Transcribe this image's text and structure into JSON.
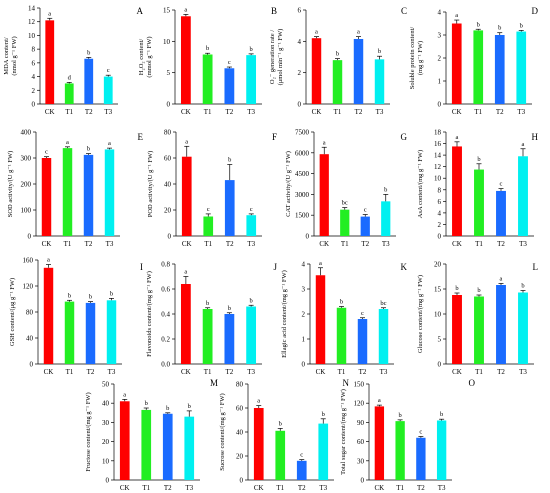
{
  "categories": [
    "CK",
    "T1",
    "T2",
    "T3"
  ],
  "colors": [
    "#ff0000",
    "#22ee22",
    "#1a6bff",
    "#00f0f0"
  ],
  "chart_data": [
    {
      "type": "bar",
      "panel": "A",
      "ylabel_lines": [
        "MDA content/",
        "(nmol g⁻¹ FW)"
      ],
      "ylim": [
        0,
        14
      ],
      "ticks": [
        0,
        2,
        4,
        6,
        8,
        10,
        12,
        14
      ],
      "categories": [
        "CK",
        "T1",
        "T2",
        "T3"
      ],
      "values": [
        12.2,
        3.0,
        6.6,
        4.0
      ],
      "errors": [
        0.3,
        0.15,
        0.2,
        0.2
      ],
      "letters": [
        "a",
        "d",
        "b",
        "c"
      ]
    },
    {
      "type": "bar",
      "panel": "B",
      "ylabel_lines": [
        "H₂O₂ content/",
        "(mmol g⁻¹ FW)"
      ],
      "ylim": [
        0,
        15
      ],
      "ticks": [
        0,
        5,
        10,
        15
      ],
      "categories": [
        "CK",
        "T1",
        "T2",
        "T3"
      ],
      "values": [
        14.0,
        7.9,
        5.7,
        7.8
      ],
      "errors": [
        0.3,
        0.2,
        0.2,
        0.2
      ],
      "letters": [
        "a",
        "b",
        "c",
        "b"
      ]
    },
    {
      "type": "bar",
      "panel": "C",
      "ylabel_lines": [
        "O₂⁻ generation rate /",
        "(μmol min⁻¹ g⁻¹ FW)"
      ],
      "ylim": [
        0,
        6
      ],
      "ticks": [
        0,
        2,
        4,
        6
      ],
      "categories": [
        "CK",
        "T1",
        "T2",
        "T3"
      ],
      "values": [
        4.2,
        2.8,
        4.15,
        2.85
      ],
      "errors": [
        0.1,
        0.1,
        0.15,
        0.2
      ],
      "letters": [
        "a",
        "b",
        "a",
        "b"
      ]
    },
    {
      "type": "bar",
      "panel": "D",
      "ylabel_lines": [
        "Soluble protein content/",
        "(mg g⁻¹ FW)"
      ],
      "ylim": [
        0,
        4
      ],
      "ticks": [
        0,
        1,
        2,
        3,
        4
      ],
      "categories": [
        "CK",
        "T1",
        "T2",
        "T3"
      ],
      "values": [
        3.5,
        3.2,
        3.0,
        3.15
      ],
      "errors": [
        0.15,
        0.05,
        0.1,
        0.05
      ],
      "letters": [
        "a",
        "b",
        "b",
        "b"
      ]
    },
    {
      "type": "bar",
      "panel": "E",
      "ylabel_lines": [
        "SOD activity/(U g⁻¹ FW)"
      ],
      "ylim": [
        0,
        400
      ],
      "ticks": [
        0,
        100,
        200,
        300,
        400
      ],
      "categories": [
        "CK",
        "T1",
        "T2",
        "T3"
      ],
      "values": [
        300,
        338,
        312,
        333
      ],
      "errors": [
        5,
        5,
        5,
        5
      ],
      "letters": [
        "c",
        "a",
        "b",
        "a"
      ]
    },
    {
      "type": "bar",
      "panel": "F",
      "ylabel_lines": [
        "POD activity/(U g⁻¹ FW)"
      ],
      "ylim": [
        0,
        80
      ],
      "ticks": [
        0,
        20,
        40,
        60,
        80
      ],
      "categories": [
        "CK",
        "T1",
        "T2",
        "T3"
      ],
      "values": [
        61,
        15,
        43,
        16
      ],
      "errors": [
        8,
        2,
        12,
        1
      ],
      "letters": [
        "a",
        "c",
        "b",
        "c"
      ]
    },
    {
      "type": "bar",
      "panel": "G",
      "ylabel_lines": [
        "CAT activity/(U g⁻¹ FW)"
      ],
      "ylim": [
        0,
        7500
      ],
      "ticks": [
        0,
        1500,
        3000,
        4500,
        6000,
        7500
      ],
      "categories": [
        "CK",
        "T1",
        "T2",
        "T3"
      ],
      "values": [
        5900,
        1900,
        1400,
        2500
      ],
      "errors": [
        500,
        150,
        150,
        500
      ],
      "letters": [
        "a",
        "bc",
        "c",
        "b"
      ]
    },
    {
      "type": "bar",
      "panel": "H",
      "ylabel_lines": [
        "AsA content/(mg g⁻¹ FW)"
      ],
      "ylim": [
        0,
        18
      ],
      "ticks": [
        0,
        2,
        4,
        6,
        8,
        10,
        12,
        14,
        16,
        18
      ],
      "categories": [
        "CK",
        "T1",
        "T2",
        "T3"
      ],
      "values": [
        15.5,
        11.5,
        7.8,
        13.8
      ],
      "errors": [
        0.8,
        1.0,
        0.4,
        1.3
      ],
      "letters": [
        "a",
        "b",
        "c",
        "a"
      ]
    },
    {
      "type": "bar",
      "panel": "I",
      "ylabel_lines": [
        "GSH content/(μg g⁻¹ FW)"
      ],
      "ylim": [
        0,
        160
      ],
      "ticks": [
        0,
        40,
        80,
        120,
        160
      ],
      "categories": [
        "CK",
        "T1",
        "T2",
        "T3"
      ],
      "values": [
        148,
        96,
        94,
        98
      ],
      "errors": [
        5,
        2,
        2,
        3
      ],
      "letters": [
        "a",
        "b",
        "b",
        "b"
      ]
    },
    {
      "type": "bar",
      "panel": "J",
      "ylabel_lines": [
        "Flavonoids content/(mg g⁻¹ FW)"
      ],
      "ylim": [
        0,
        0.8
      ],
      "ticks": [
        0.0,
        0.2,
        0.4,
        0.6,
        0.8
      ],
      "categories": [
        "CK",
        "T1",
        "T2",
        "T3"
      ],
      "values": [
        0.64,
        0.44,
        0.4,
        0.46
      ],
      "errors": [
        0.06,
        0.01,
        0.01,
        0.01
      ],
      "letters": [
        "a",
        "b",
        "b",
        "b"
      ]
    },
    {
      "type": "bar",
      "panel": "K",
      "ylabel_lines": [
        "Ellagic acid content/(mg g⁻¹ FW)"
      ],
      "ylim": [
        0,
        4
      ],
      "ticks": [
        0,
        1,
        2,
        3,
        4
      ],
      "categories": [
        "CK",
        "T1",
        "T2",
        "T3"
      ],
      "values": [
        3.55,
        2.25,
        1.8,
        2.2
      ],
      "errors": [
        0.3,
        0.05,
        0.05,
        0.05
      ],
      "letters": [
        "a",
        "b",
        "c",
        "bc"
      ]
    },
    {
      "type": "bar",
      "panel": "L",
      "ylabel_lines": [
        "Glucose content/(mg g⁻¹ FW)"
      ],
      "ylim": [
        0,
        20
      ],
      "ticks": [
        0,
        5,
        10,
        15,
        20
      ],
      "categories": [
        "CK",
        "T1",
        "T2",
        "T3"
      ],
      "values": [
        13.8,
        13.5,
        15.8,
        14.3
      ],
      "errors": [
        0.4,
        0.3,
        0.3,
        0.4
      ],
      "letters": [
        "b",
        "b",
        "a",
        "b"
      ]
    },
    {
      "type": "bar",
      "panel": "M",
      "ylabel_lines": [
        "Fructose content/(mg g⁻¹ FW)"
      ],
      "ylim": [
        0,
        50
      ],
      "ticks": [
        0,
        10,
        20,
        30,
        40,
        50
      ],
      "categories": [
        "CK",
        "T1",
        "T2",
        "T3"
      ],
      "values": [
        41,
        36.5,
        34.5,
        33
      ],
      "errors": [
        1.0,
        1.0,
        0.5,
        3.0
      ],
      "letters": [
        "a",
        "b",
        "b",
        "b"
      ]
    },
    {
      "type": "bar",
      "panel": "N",
      "ylabel_lines": [
        "Sucrose content/(mg g⁻¹ FW)"
      ],
      "ylim": [
        0,
        80
      ],
      "ticks": [
        0,
        20,
        40,
        60,
        80
      ],
      "categories": [
        "CK",
        "T1",
        "T2",
        "T3"
      ],
      "values": [
        60,
        41,
        16,
        47
      ],
      "errors": [
        2,
        2,
        1,
        4
      ],
      "letters": [
        "a",
        "b",
        "c",
        "b"
      ]
    },
    {
      "type": "bar",
      "panel": "O",
      "ylabel_lines": [
        "Total sugar content/(mg g⁻¹ FW)"
      ],
      "ylim": [
        0,
        150
      ],
      "ticks": [
        0,
        30,
        60,
        90,
        120,
        150
      ],
      "categories": [
        "CK",
        "T1",
        "T2",
        "T3"
      ],
      "values": [
        115,
        92,
        66,
        93
      ],
      "errors": [
        2,
        2,
        2,
        2
      ],
      "letters": [
        "a",
        "b",
        "c",
        "b"
      ]
    }
  ]
}
